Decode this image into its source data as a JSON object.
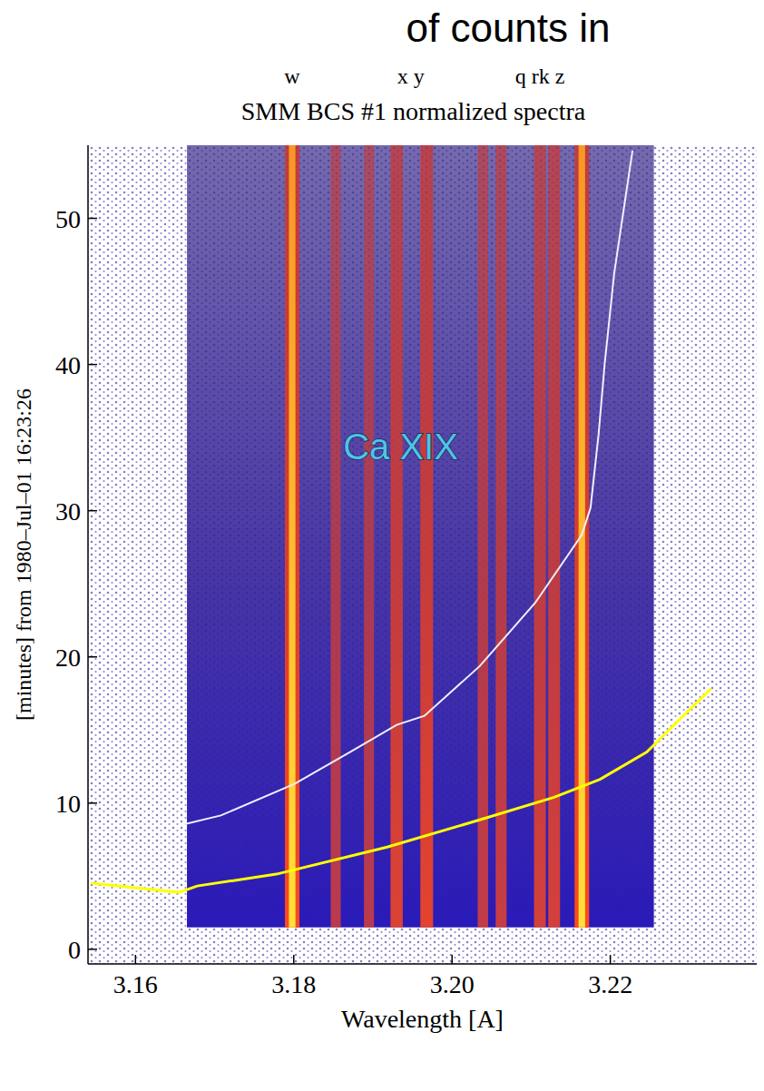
{
  "chart_data": {
    "type": "spectrogram",
    "header_fragment": "of counts in",
    "title": "SMM BCS #1 normalized spectra",
    "annotation": "Ca XIX",
    "x_label": "Wavelength [A]",
    "y_label": "[minutes] from 1980–Jul–01 16:23:26",
    "xlim": [
      3.154,
      3.2385
    ],
    "ylim": [
      -1,
      55
    ],
    "xticks": [
      3.16,
      3.18,
      {
        "value": 3.2,
        "label": "3.20"
      },
      3.22
    ],
    "yticks": [
      0,
      10,
      20,
      30,
      40,
      50
    ],
    "line_labels": [
      {
        "label": "w",
        "x": 3.1798
      },
      {
        "label": "x y",
        "x": 3.1948
      },
      {
        "label": "q rk z",
        "x": 3.2111
      }
    ],
    "annotation_position": {
      "x": 3.1935,
      "y": 33.5
    },
    "detector_range": [
      3.1665,
      3.2255
    ],
    "time_range": [
      1.5,
      55
    ],
    "lines": [
      {
        "wavelength": 3.1798,
        "intensity": 1.0
      },
      {
        "wavelength": 3.1853,
        "intensity": 0.5
      },
      {
        "wavelength": 3.1895,
        "intensity": 0.5
      },
      {
        "wavelength": 3.193,
        "intensity": 0.75
      },
      {
        "wavelength": 3.1968,
        "intensity": 0.8
      },
      {
        "wavelength": 3.2039,
        "intensity": 0.55
      },
      {
        "wavelength": 3.2062,
        "intensity": 0.6
      },
      {
        "wavelength": 3.2111,
        "intensity": 0.7
      },
      {
        "wavelength": 3.2129,
        "intensity": 0.7
      },
      {
        "wavelength": 3.2164,
        "intensity": 1.0
      }
    ],
    "series": [
      {
        "color": "#f0f0ff",
        "x": [
          3.1661,
          3.1708,
          3.1801,
          3.1871,
          3.193,
          3.1965,
          3.2035,
          3.2105,
          3.2164,
          3.2175,
          3.2185,
          3.2193,
          3.2205,
          3.2228
        ],
        "values": [
          8.54,
          9.16,
          11.32,
          13.49,
          15.35,
          15.97,
          19.37,
          23.7,
          28.34,
          30.2,
          35.15,
          40.1,
          46.29,
          54.64
        ]
      },
      {
        "color": "#ffff00",
        "x": [
          3.1544,
          3.1655,
          3.1678,
          3.1778,
          3.1918,
          3.2035,
          3.2129,
          3.2187,
          3.2246,
          3.2292,
          3.2327
        ],
        "values": [
          4.52,
          3.9,
          4.33,
          5.14,
          6.99,
          8.85,
          10.4,
          11.63,
          13.49,
          15.97,
          17.82
        ]
      }
    ]
  }
}
